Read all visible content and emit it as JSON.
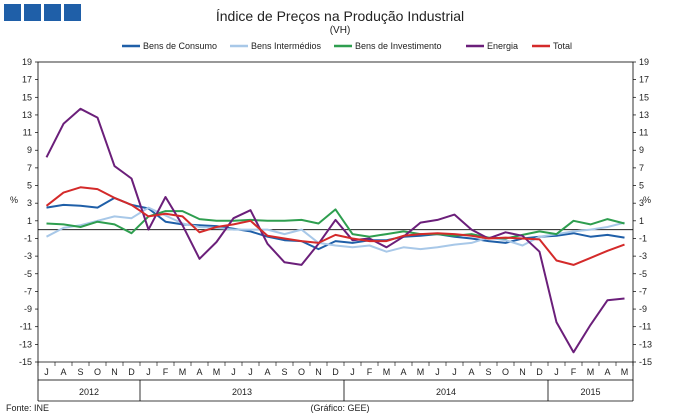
{
  "header": {
    "title": "Índice de Preços na Produção Industrial",
    "subtitle": "(VH)"
  },
  "footer": {
    "source": "Fonte: INE",
    "credit": "(Gráfico: GEE)"
  },
  "chart_data": {
    "type": "line",
    "title": "Índice de Preços na Produção Industrial",
    "subtitle": "(VH)",
    "ylabel": "%",
    "ylim": [
      -15,
      19
    ],
    "yticks": [
      19,
      17,
      15,
      13,
      11,
      9,
      7,
      5,
      3,
      1,
      -1,
      -3,
      -5,
      -7,
      -9,
      -11,
      -13,
      -15
    ],
    "legend_position": "top",
    "categories": [
      "J",
      "A",
      "S",
      "O",
      "N",
      "D",
      "J",
      "F",
      "M",
      "A",
      "M",
      "J",
      "J",
      "A",
      "S",
      "O",
      "N",
      "D",
      "J",
      "F",
      "M",
      "A",
      "M",
      "J",
      "J",
      "A",
      "S",
      "O",
      "N",
      "D",
      "J",
      "F",
      "M",
      "A",
      "M"
    ],
    "years": [
      {
        "label": "2012",
        "start": 0,
        "end": 5
      },
      {
        "label": "2013",
        "start": 6,
        "end": 17
      },
      {
        "label": "2014",
        "start": 18,
        "end": 29
      },
      {
        "label": "2015",
        "start": 30,
        "end": 34
      }
    ],
    "series": [
      {
        "name": "Bens de Consumo",
        "color": "#1f5fa8",
        "values": [
          2.5,
          2.8,
          2.7,
          2.5,
          3.6,
          2.8,
          2.4,
          0.9,
          0.6,
          0.5,
          0.4,
          0.1,
          -0.2,
          -0.8,
          -1.2,
          -1.3,
          -2.2,
          -1.3,
          -1.5,
          -1.2,
          -1.2,
          -0.8,
          -0.7,
          -0.5,
          -0.8,
          -1.0,
          -1.3,
          -1.5,
          -1.0,
          -0.8,
          -0.7,
          -0.4,
          -0.8,
          -0.6,
          -0.9
        ]
      },
      {
        "name": "Bens Intermédios",
        "color": "#a8c8e8",
        "values": [
          -0.8,
          0.2,
          0.5,
          1.0,
          1.5,
          1.3,
          2.5,
          1.6,
          0.7,
          0.3,
          0.2,
          0.0,
          0.0,
          0.0,
          -0.5,
          0.0,
          -1.5,
          -1.8,
          -2.0,
          -1.8,
          -2.5,
          -2.0,
          -2.2,
          -2.0,
          -1.7,
          -1.5,
          -0.9,
          -1.2,
          -1.8,
          -0.8,
          -0.5,
          -0.2,
          0.0,
          0.3,
          0.8
        ]
      },
      {
        "name": "Bens de Investimento",
        "color": "#2e9e4f",
        "values": [
          0.7,
          0.6,
          0.3,
          0.9,
          0.6,
          -0.4,
          1.5,
          2.1,
          2.1,
          1.2,
          1.0,
          1.0,
          1.1,
          1.0,
          1.0,
          1.1,
          0.7,
          2.3,
          -0.5,
          -0.8,
          -0.5,
          -0.2,
          -0.5,
          -0.5,
          -0.7,
          -0.5,
          -0.9,
          -1.0,
          -0.6,
          -0.2,
          -0.5,
          1.0,
          0.6,
          1.2,
          0.7
        ]
      },
      {
        "name": "Energia",
        "color": "#6b1f7a",
        "values": [
          8.2,
          12.0,
          13.7,
          12.7,
          7.2,
          5.8,
          0.0,
          3.7,
          0.5,
          -3.3,
          -1.4,
          1.3,
          2.2,
          -1.6,
          -3.7,
          -4.0,
          -1.6,
          1.1,
          -1.2,
          -1.0,
          -2.0,
          -0.8,
          0.8,
          1.1,
          1.7,
          0.0,
          -1.0,
          -0.3,
          -0.7,
          -2.5,
          -10.5,
          -13.9,
          -10.8,
          -8.0,
          -7.8
        ]
      },
      {
        "name": "Total",
        "color": "#d42a2a",
        "values": [
          2.7,
          4.2,
          4.8,
          4.6,
          3.6,
          2.8,
          1.5,
          1.8,
          1.5,
          -0.3,
          0.3,
          0.6,
          1.0,
          -0.7,
          -1.0,
          -1.3,
          -1.5,
          -0.6,
          -1.0,
          -1.3,
          -1.3,
          -0.7,
          -0.5,
          -0.4,
          -0.5,
          -0.7,
          -1.0,
          -0.9,
          -1.0,
          -1.1,
          -3.5,
          -4.0,
          -3.2,
          -2.4,
          -1.7
        ]
      }
    ]
  }
}
